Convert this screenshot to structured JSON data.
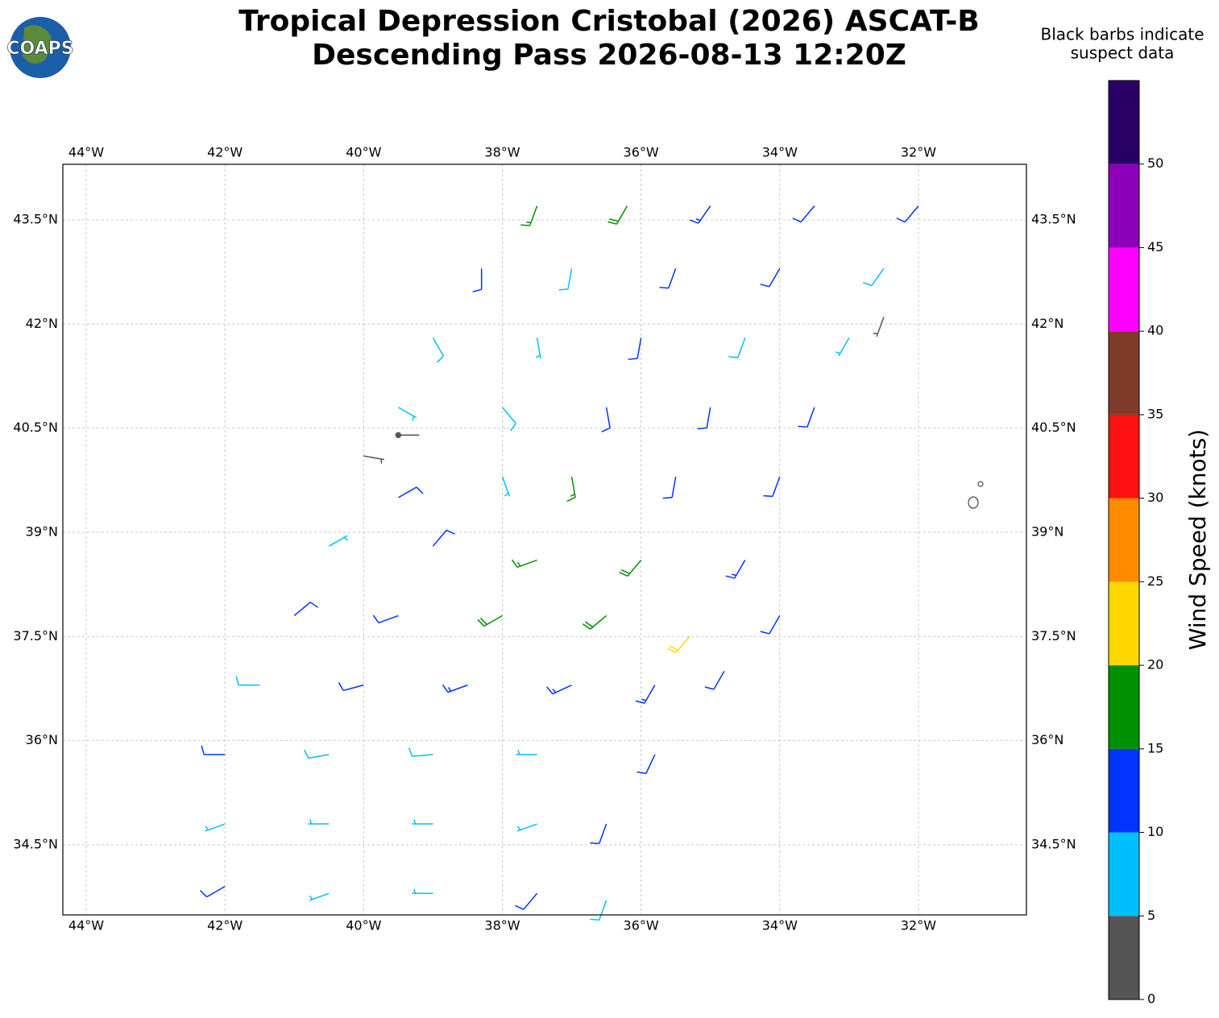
{
  "chart_data": {
    "type": "barbs",
    "title": [
      "Tropical Depression Cristobal (2026) ASCAT-B",
      "Descending Pass 2026-08-13 12:20Z"
    ],
    "logo_text": "COAPS",
    "annotation": [
      "Black barbs indicate",
      "suspect data"
    ],
    "xlim": [
      -44.337,
      -30.443
    ],
    "ylim": [
      33.49,
      44.3
    ],
    "xticks": [
      {
        "value": -44,
        "label": "44°W"
      },
      {
        "value": -42,
        "label": "42°W"
      },
      {
        "value": -40,
        "label": "40°W"
      },
      {
        "value": -38,
        "label": "38°W"
      },
      {
        "value": -36,
        "label": "36°W"
      },
      {
        "value": -34,
        "label": "34°W"
      },
      {
        "value": -32,
        "label": "32°W"
      }
    ],
    "yticks": [
      {
        "value": 34.5,
        "label": "34.5°N"
      },
      {
        "value": 36,
        "label": "36°N"
      },
      {
        "value": 37.5,
        "label": "37.5°N"
      },
      {
        "value": 39,
        "label": "39°N"
      },
      {
        "value": 40.5,
        "label": "40.5°N"
      },
      {
        "value": 42,
        "label": "42°N"
      },
      {
        "value": 43.5,
        "label": "43.5°N"
      }
    ],
    "grid": true,
    "suspect_color": "#555555",
    "colorbar": {
      "label": "Wind Speed (knots)",
      "clim": [
        0,
        55
      ],
      "ticks": [
        0,
        5,
        10,
        15,
        20,
        25,
        30,
        35,
        40,
        45,
        50
      ],
      "colors": [
        "#555555",
        "#00bfff",
        "#0033ff",
        "#009000",
        "#ffd700",
        "#ff8c00",
        "#ff1010",
        "#7f3b2a",
        "#ff00ff",
        "#8b00b8",
        "#2b0066"
      ]
    },
    "barbs": {
      "lon": [
        -37.5,
        -36.2,
        -35,
        -33.5,
        -32,
        -38.3,
        -37,
        -35.5,
        -34,
        -32.5,
        -39,
        -37.5,
        -36,
        -34.5,
        -33,
        -32.5,
        -39.5,
        -38,
        -36.5,
        -35,
        -33.5,
        -40,
        -39.5,
        -39.5,
        -38,
        -37,
        -35.5,
        -34,
        -40.5,
        -39,
        -37.5,
        -36,
        -34.5,
        -41,
        -39.5,
        -38,
        -36.5,
        -35.3,
        -34,
        -41.5,
        -40,
        -38.5,
        -37,
        -35.8,
        -34.8,
        -42,
        -40.5,
        -39,
        -37.5,
        -35.8,
        -42,
        -40.5,
        -39,
        -37.5,
        -36.5,
        -42,
        -40.5,
        -39,
        -37.5,
        -36.5
      ],
      "lat": [
        43.7,
        43.7,
        43.7,
        43.7,
        43.7,
        42.8,
        42.8,
        42.8,
        42.8,
        42.8,
        41.8,
        41.8,
        41.8,
        41.8,
        41.8,
        42.1,
        40.8,
        40.8,
        40.8,
        40.8,
        40.8,
        40.1,
        40.4,
        39.5,
        39.8,
        39.8,
        39.8,
        39.8,
        38.8,
        38.8,
        38.6,
        38.6,
        38.6,
        37.8,
        37.8,
        37.8,
        37.8,
        37.5,
        37.8,
        36.8,
        36.8,
        36.8,
        36.8,
        36.8,
        37,
        35.8,
        35.8,
        35.8,
        35.8,
        35.8,
        34.8,
        34.8,
        34.8,
        34.8,
        34.8,
        33.9,
        33.8,
        33.8,
        33.8,
        33.7
      ],
      "speed": [
        17,
        18,
        13,
        12,
        12,
        12,
        8,
        12,
        11,
        8,
        8,
        7,
        11,
        9,
        7,
        3,
        7,
        8,
        12,
        12,
        11,
        3,
        2,
        11,
        7,
        16,
        12,
        12,
        7,
        12,
        17,
        18,
        14,
        12,
        12,
        18,
        18,
        21,
        12,
        8,
        12,
        13,
        13,
        13,
        11,
        12,
        8,
        8,
        7,
        12,
        7,
        7,
        7,
        7,
        11,
        12,
        7,
        7,
        12,
        8
      ],
      "dir": [
        200,
        210,
        215,
        220,
        220,
        180,
        190,
        200,
        210,
        215,
        150,
        170,
        190,
        200,
        210,
        200,
        120,
        140,
        170,
        190,
        200,
        100,
        90,
        60,
        160,
        170,
        190,
        200,
        60,
        40,
        250,
        220,
        210,
        50,
        250,
        240,
        230,
        220,
        210,
        270,
        255,
        250,
        245,
        210,
        210,
        270,
        260,
        265,
        270,
        205,
        250,
        270,
        270,
        250,
        200,
        240,
        250,
        270,
        220,
        200
      ],
      "suspect": [
        false,
        false,
        false,
        false,
        false,
        false,
        false,
        false,
        false,
        false,
        false,
        false,
        false,
        false,
        false,
        true,
        false,
        false,
        false,
        false,
        false,
        true,
        true,
        false,
        false,
        false,
        false,
        false,
        false,
        false,
        false,
        false,
        false,
        false,
        false,
        false,
        false,
        false,
        false,
        false,
        false,
        false,
        false,
        false,
        false,
        false,
        false,
        false,
        false,
        false,
        false,
        false,
        false,
        false,
        false,
        false,
        false,
        false,
        false,
        false
      ]
    }
  }
}
